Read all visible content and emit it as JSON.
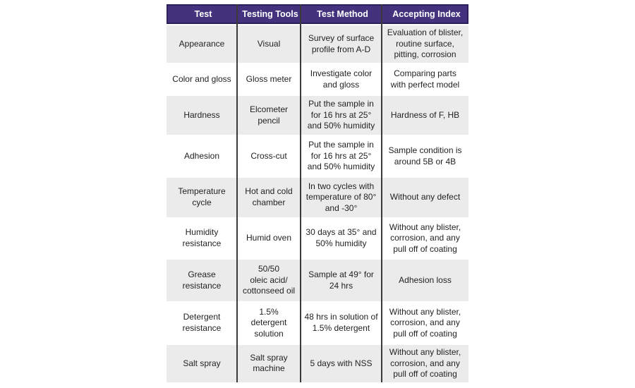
{
  "table": {
    "columns": [
      "Test",
      "Testing Tools",
      "Test Method",
      "Accepting Index"
    ],
    "rows": [
      {
        "test": "Appearance",
        "tools": "Visual",
        "method": "Survey of surface\nprofile from A-D",
        "index": "Evaluation of blister,\nroutine surface,\npitting, corrosion"
      },
      {
        "test": "Color and gloss",
        "tools": "Gloss meter",
        "method": "Investigate color\nand gloss",
        "index": "Comparing parts\nwith perfect model"
      },
      {
        "test": "Hardness",
        "tools": "Elcometer\npencil",
        "method": "Put the sample in\nfor 16 hrs at 25°\nand 50% humidity",
        "index": "Hardness of F, HB"
      },
      {
        "test": "Adhesion",
        "tools": "Cross-cut",
        "method": "Put the sample in\nfor 16 hrs at 25°\nand 50% humidity",
        "index": "Sample condition is\naround 5B or 4B"
      },
      {
        "test": "Temperature\ncycle",
        "tools": "Hot and cold\nchamber",
        "method": "In two cycles with\ntemperature of 80°\nand -30°",
        "index": "Without any defect"
      },
      {
        "test": "Humidity\nresistance",
        "tools": "Humid oven",
        "method": "30 days at 35° and\n50% humidity",
        "index": "Without any blister,\ncorrosion, and any\npull off of coating"
      },
      {
        "test": "Grease\nresistance",
        "tools": "50/50\noleic acid/\ncottonseed oil",
        "method": "Sample at 49° for\n24 hrs",
        "index": "Adhesion loss"
      },
      {
        "test": "Detergent\nresistance",
        "tools": "1.5%\ndetergent\nsolution",
        "method": "48 hrs in solution of\n1.5% detergent",
        "index": "Without any blister,\ncorrosion, and any\npull off of coating"
      },
      {
        "test": "Salt spray",
        "tools": "Salt spray\nmachine",
        "method": "5 days with NSS",
        "index": "Without any blister,\ncorrosion, and any\npull off of coating"
      }
    ]
  },
  "colors": {
    "header_bg": "#45327e",
    "header_border": "#2b1f5c",
    "header_text": "#ffffff",
    "row_alt_bg": "#ebebeb",
    "row_bg": "#ffffff",
    "divider": "#3a3a3a",
    "text": "#231f20"
  }
}
